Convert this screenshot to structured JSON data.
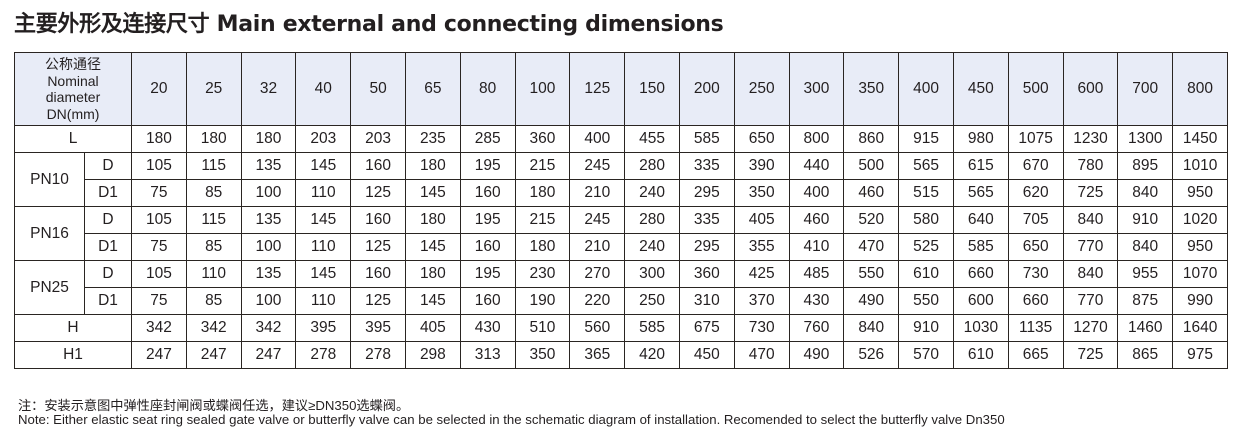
{
  "title": "主要外形及连接尺寸 Main external and connecting dimensions",
  "table": {
    "header_label": [
      "公称通径",
      "Nominal",
      "diameter",
      "DN(mm)"
    ],
    "dn": [
      "20",
      "25",
      "32",
      "40",
      "50",
      "65",
      "80",
      "100",
      "125",
      "150",
      "200",
      "250",
      "300",
      "350",
      "400",
      "450",
      "500",
      "600",
      "700",
      "800"
    ],
    "L": {
      "label": "L",
      "values": [
        "180",
        "180",
        "180",
        "203",
        "203",
        "235",
        "285",
        "360",
        "400",
        "455",
        "585",
        "650",
        "800",
        "860",
        "915",
        "980",
        "1075",
        "1230",
        "1300",
        "1450"
      ]
    },
    "groups": [
      {
        "label": "PN10",
        "rows": [
          {
            "label": "D",
            "values": [
              "105",
              "115",
              "135",
              "145",
              "160",
              "180",
              "195",
              "215",
              "245",
              "280",
              "335",
              "390",
              "440",
              "500",
              "565",
              "615",
              "670",
              "780",
              "895",
              "1010"
            ]
          },
          {
            "label": "D1",
            "values": [
              "75",
              "85",
              "100",
              "110",
              "125",
              "145",
              "160",
              "180",
              "210",
              "240",
              "295",
              "350",
              "400",
              "460",
              "515",
              "565",
              "620",
              "725",
              "840",
              "950"
            ]
          }
        ]
      },
      {
        "label": "PN16",
        "rows": [
          {
            "label": "D",
            "values": [
              "105",
              "115",
              "135",
              "145",
              "160",
              "180",
              "195",
              "215",
              "245",
              "280",
              "335",
              "405",
              "460",
              "520",
              "580",
              "640",
              "705",
              "840",
              "910",
              "1020"
            ]
          },
          {
            "label": "D1",
            "values": [
              "75",
              "85",
              "100",
              "110",
              "125",
              "145",
              "160",
              "180",
              "210",
              "240",
              "295",
              "355",
              "410",
              "470",
              "525",
              "585",
              "650",
              "770",
              "840",
              "950"
            ]
          }
        ]
      },
      {
        "label": "PN25",
        "rows": [
          {
            "label": "D",
            "values": [
              "105",
              "110",
              "135",
              "145",
              "160",
              "180",
              "195",
              "230",
              "270",
              "300",
              "360",
              "425",
              "485",
              "550",
              "610",
              "660",
              "730",
              "840",
              "955",
              "1070"
            ]
          },
          {
            "label": "D1",
            "values": [
              "75",
              "85",
              "100",
              "110",
              "125",
              "145",
              "160",
              "190",
              "220",
              "250",
              "310",
              "370",
              "430",
              "490",
              "550",
              "600",
              "660",
              "770",
              "875",
              "990"
            ]
          }
        ]
      }
    ],
    "H": {
      "label": "H",
      "values": [
        "342",
        "342",
        "342",
        "395",
        "395",
        "405",
        "430",
        "510",
        "560",
        "585",
        "675",
        "730",
        "760",
        "840",
        "910",
        "1030",
        "1135",
        "1270",
        "1460",
        "1640"
      ]
    },
    "H1": {
      "label": "H1",
      "values": [
        "247",
        "247",
        "247",
        "278",
        "278",
        "298",
        "313",
        "350",
        "365",
        "420",
        "450",
        "470",
        "490",
        "526",
        "570",
        "610",
        "665",
        "725",
        "865",
        "975"
      ]
    }
  },
  "notes": {
    "zh": "注：安装示意图中弹性座封闸阀或蝶阀任选，建议≥DN350选蝶阀。",
    "en": "Note: Either elastic seat ring sealed gate valve or butterfly valve can be selected in the schematic diagram of installation. Recomended to select the butterfly valve Dn350"
  },
  "colors": {
    "header_bg": "#e8ecf7",
    "border": "#2a2522"
  }
}
